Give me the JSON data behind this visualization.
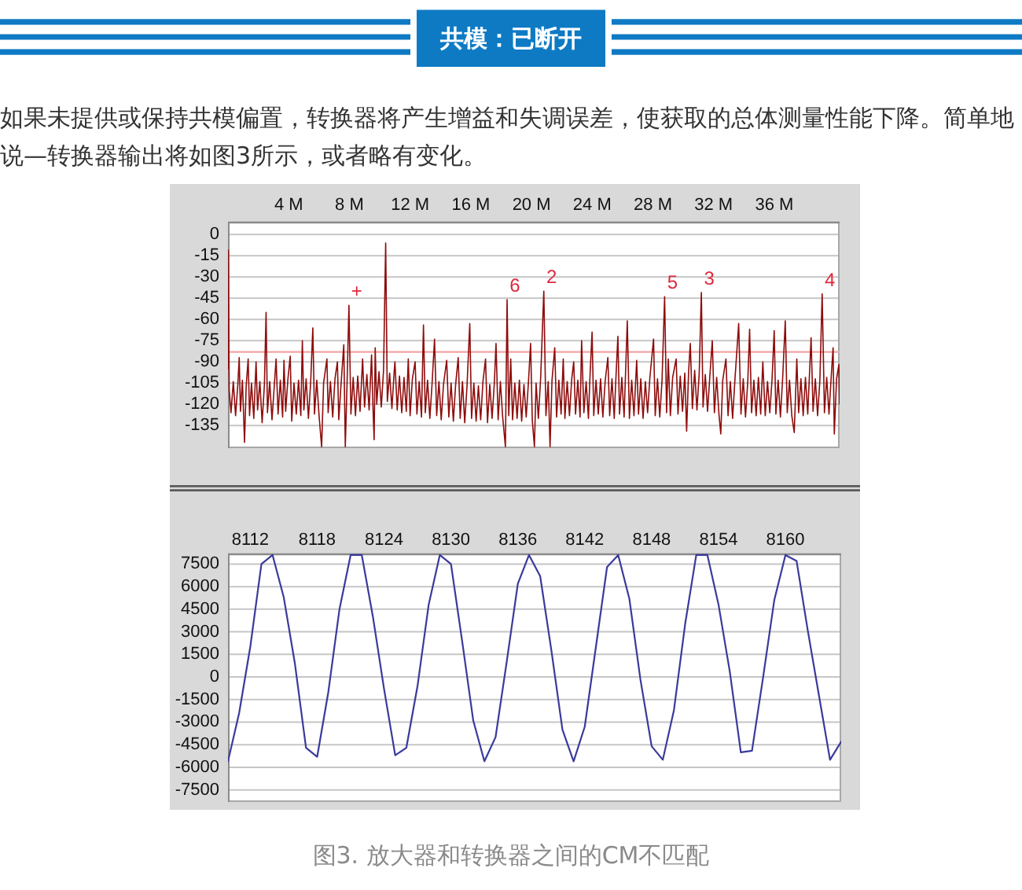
{
  "chart_data": [
    {
      "type": "line",
      "title": "共模：已断开",
      "subtitle": "如果未提供或保持共模偏置，转换器将产生增益和失调误差，使获取的总体测量性能下降。简单地说—转换器输出将如图3所示，或者略有变化。",
      "x": [
        0,
        0.02,
        0.08,
        0.2,
        0.35,
        0.5,
        0.65,
        0.74,
        0.82,
        0.95,
        1.09,
        1.2,
        1.33,
        1.42,
        1.55,
        1.7,
        1.85,
        1.95,
        2.1,
        2.25,
        2.4,
        2.51,
        2.6,
        2.75,
        2.9,
        3.05,
        3.17,
        3.3,
        3.45,
        3.6,
        3.69,
        3.8,
        3.95,
        4.1,
        4.2,
        4.35,
        4.5,
        4.65,
        4.8,
        4.9,
        5.0,
        5.15,
        5.3,
        5.45,
        5.59,
        5.7,
        5.85,
        6.0,
        6.17,
        6.3,
        6.52,
        6.6,
        6.75,
        6.9,
        7.05,
        7.21,
        7.3,
        7.45,
        7.63,
        7.73,
        7.85,
        7.97,
        8.1,
        8.25,
        8.4,
        8.55,
        8.7,
        8.87,
        9.0,
        9.15,
        9.3,
        9.46,
        9.55,
        9.63,
        9.7,
        9.8,
        9.95,
        10.1,
        10.25,
        10.39,
        10.5,
        10.65,
        10.8,
        10.95,
        11.0,
        11.15,
        11.3,
        11.45,
        11.6,
        11.75,
        11.88,
        12.0,
        12.15,
        12.33,
        12.45,
        12.6,
        12.75,
        12.88,
        13.0,
        13.15,
        13.3,
        13.45,
        13.61,
        13.75,
        13.9,
        14.05,
        14.2,
        14.41,
        14.55,
        14.7,
        14.85,
        15.0,
        15.17,
        15.3,
        15.45,
        15.6,
        15.75,
        15.93,
        16.05,
        16.2,
        16.35,
        16.5,
        16.65,
        16.8,
        16.97,
        17.1,
        17.25,
        17.4,
        17.55,
        17.66,
        17.8,
        17.95,
        18.1,
        18.28,
        18.39,
        18.5,
        18.63,
        18.75,
        18.9,
        19.05,
        19.2,
        19.35,
        19.5,
        19.65,
        19.8,
        19.94,
        20.05,
        20.19,
        20.3,
        20.45,
        20.6,
        20.81,
        20.95,
        21.1,
        21.22,
        21.35,
        21.53,
        21.65,
        21.8,
        21.95,
        22.09,
        22.2,
        22.35,
        22.5,
        22.65,
        22.78,
        22.9,
        23.05,
        23.2,
        23.3,
        23.45,
        23.6,
        23.75,
        23.85,
        23.99,
        24.1,
        24.25,
        24.4,
        24.55,
        24.7,
        24.85,
        25.03,
        25.15,
        25.3,
        25.45,
        25.55,
        25.69,
        25.8,
        25.95,
        26.1,
        26.31,
        26.45,
        26.6,
        26.75,
        26.93,
        27.05,
        27.2,
        27.35,
        27.5,
        27.65,
        27.8,
        28.04,
        28.15,
        28.3,
        28.45,
        28.6,
        28.77,
        28.9,
        29.01,
        29.15,
        29.3,
        29.53,
        29.65,
        29.8,
        29.95,
        30.1,
        30.22,
        30.35,
        30.46,
        30.6,
        30.75,
        30.9,
        31.05,
        31.19,
        31.3,
        31.45,
        31.6,
        31.75,
        31.91,
        32.05,
        32.2,
        32.35,
        32.47,
        32.6,
        32.81,
        32.95,
        33.1,
        33.25,
        33.4,
        33.65,
        33.8,
        33.95,
        34.1,
        34.25,
        34.37,
        34.5,
        34.65,
        34.8,
        34.95,
        35.1,
        35.24,
        35.4,
        35.55,
        35.7,
        35.85,
        35.99,
        36.1,
        36.25,
        36.4,
        36.55,
        36.72,
        36.85,
        37.0,
        37.15,
        37.31,
        37.48,
        37.6,
        37.75,
        37.9,
        38.05,
        38.2,
        38.42,
        38.55,
        38.7,
        38.85,
        39.0,
        39.15,
        39.3,
        39.45,
        39.6,
        39.75,
        39.87,
        39.95,
        40.1,
        40.25,
        40.3
      ],
      "values": [
        -95,
        -11,
        -110,
        -126,
        -104,
        -128,
        -106,
        -87,
        -125,
        -103,
        -147,
        -107,
        -88,
        -128,
        -105,
        -130,
        -90,
        -124,
        -104,
        -133,
        -106,
        -55,
        -126,
        -104,
        -131,
        -107,
        -88,
        -127,
        -103,
        -129,
        -89,
        -125,
        -102,
        -86,
        -132,
        -105,
        -127,
        -103,
        -128,
        -75,
        -124,
        -102,
        -130,
        -104,
        -66,
        -127,
        -103,
        -128,
        -150,
        -105,
        -88,
        -126,
        -104,
        -129,
        -102,
        -90,
        -131,
        -106,
        -78,
        -150,
        -104,
        -50,
        -127,
        -101,
        -128,
        -100,
        -125,
        -88,
        -122,
        -99,
        -124,
        -85,
        -121,
        -145,
        -80,
        -120,
        -97,
        -122,
        -96,
        -6,
        -118,
        -98,
        -123,
        -97,
        -90,
        -124,
        -100,
        -126,
        -101,
        -125,
        -88,
        -128,
        -102,
        -90,
        -127,
        -104,
        -129,
        -64,
        -126,
        -103,
        -130,
        -105,
        -74,
        -128,
        -104,
        -131,
        -106,
        -89,
        -129,
        -105,
        -132,
        -106,
        -87,
        -130,
        -104,
        -133,
        -107,
        -63,
        -130,
        -105,
        -132,
        -107,
        -131,
        -104,
        -88,
        -133,
        -106,
        -130,
        -105,
        -77,
        -131,
        -104,
        -129,
        -150,
        -46,
        -128,
        -88,
        -131,
        -105,
        -130,
        -103,
        -132,
        -106,
        -129,
        -104,
        -77,
        -131,
        -150,
        -105,
        -130,
        -102,
        -40,
        -128,
        -104,
        -150,
        -103,
        -80,
        -129,
        -103,
        -127,
        -88,
        -130,
        -104,
        -128,
        -102,
        -90,
        -127,
        -103,
        -129,
        -75,
        -126,
        -104,
        -130,
        -101,
        -69,
        -128,
        -103,
        -127,
        -102,
        -129,
        -104,
        -87,
        -128,
        -102,
        -130,
        -104,
        -72,
        -127,
        -101,
        -129,
        -61,
        -130,
        -103,
        -128,
        -89,
        -127,
        -102,
        -130,
        -104,
        -126,
        -101,
        -74,
        -128,
        -102,
        -129,
        -103,
        -44,
        -126,
        -88,
        -128,
        -101,
        -88,
        -127,
        -100,
        -125,
        -98,
        -139,
        -97,
        -77,
        -123,
        -96,
        -124,
        -98,
        -41,
        -122,
        -99,
        -125,
        -100,
        -75,
        -126,
        -101,
        -127,
        -141,
        -103,
        -88,
        -128,
        -104,
        -130,
        -103,
        -63,
        -127,
        -102,
        -129,
        -104,
        -67,
        -126,
        -103,
        -128,
        -101,
        -127,
        -90,
        -128,
        -104,
        -126,
        -102,
        -68,
        -127,
        -103,
        -129,
        -101,
        -61,
        -126,
        -103,
        -128,
        -140,
        -88,
        -126,
        -102,
        -128,
        -101,
        -127,
        -73,
        -125,
        -102,
        -128,
        -103,
        -42,
        -126,
        -101,
        -127,
        -100,
        -80,
        -141,
        -102,
        -92,
        -120
      ],
      "color": "#8e0c0c",
      "xlim": [
        0,
        40.3
      ],
      "ylim": [
        -151,
        9
      ],
      "xticks": [
        {
          "value": 4,
          "label": "4 M"
        },
        {
          "value": 8,
          "label": "8 M"
        },
        {
          "value": 12,
          "label": "12 M"
        },
        {
          "value": 16,
          "label": "16 M"
        },
        {
          "value": 20,
          "label": "20 M"
        },
        {
          "value": 24,
          "label": "24 M"
        },
        {
          "value": 28,
          "label": "28 M"
        },
        {
          "value": 32,
          "label": "32 M"
        },
        {
          "value": 36,
          "label": "36 M"
        }
      ],
      "yticks": [
        -135,
        -120,
        -105,
        -90,
        -75,
        -60,
        -45,
        -30,
        -15,
        0
      ],
      "grid": "y",
      "ref_lines": [
        {
          "axis": "y",
          "value": -83,
          "color": "#f4a4a4"
        }
      ],
      "annotations": [
        {
          "text": "+",
          "x": 7.97,
          "y": -50
        },
        {
          "text": "6",
          "x": 18.39,
          "y": -46
        },
        {
          "text": "2",
          "x": 20.81,
          "y": -40
        },
        {
          "text": "5",
          "x": 28.77,
          "y": -44
        },
        {
          "text": "3",
          "x": 31.19,
          "y": -41
        },
        {
          "text": "4",
          "x": 39.15,
          "y": -42
        }
      ]
    },
    {
      "type": "line",
      "x": [
        8110,
        8111,
        8112,
        8113,
        8114,
        8115,
        8116,
        8117,
        8118,
        8119,
        8120,
        8121,
        8122,
        8123,
        8124,
        8125,
        8126,
        8127,
        8128,
        8129,
        8130,
        8131,
        8132,
        8133,
        8134,
        8135,
        8136,
        8137,
        8138,
        8139,
        8140,
        8141,
        8142,
        8143,
        8144,
        8145,
        8146,
        8147,
        8148,
        8149,
        8150,
        8151,
        8152,
        8153,
        8154,
        8155,
        8156,
        8157,
        8158,
        8159,
        8160,
        8161,
        8162,
        8163,
        8164,
        8165
      ],
      "values": [
        -5600,
        -2400,
        2000,
        7500,
        8100,
        5300,
        900,
        -4700,
        -5300,
        -1000,
        4500,
        8100,
        8100,
        4000,
        -800,
        -5200,
        -4700,
        -600,
        4800,
        8100,
        7500,
        2400,
        -2900,
        -5600,
        -4000,
        1000,
        6200,
        8100,
        6700,
        1800,
        -3500,
        -5600,
        -3300,
        2000,
        7300,
        8100,
        5200,
        -200,
        -4600,
        -5500,
        -2200,
        3500,
        8100,
        8100,
        4800,
        400,
        -5000,
        -4900,
        0,
        5100,
        8100,
        7700,
        3100,
        -1200,
        -5500,
        -4300
      ],
      "color": "#3a3a9c",
      "xlim": [
        8110,
        8165
      ],
      "ylim": [
        -8300,
        8200
      ],
      "xticks": [
        8112,
        8118,
        8124,
        8130,
        8136,
        8142,
        8148,
        8154,
        8160
      ],
      "yticks": [
        -7500,
        -6000,
        -4500,
        -3000,
        -1500,
        0,
        1500,
        3000,
        4500,
        6000,
        7500
      ],
      "grid": "y",
      "annotations": [
        "图3. 放大器和转换器之间的CM不匹配"
      ]
    }
  ]
}
